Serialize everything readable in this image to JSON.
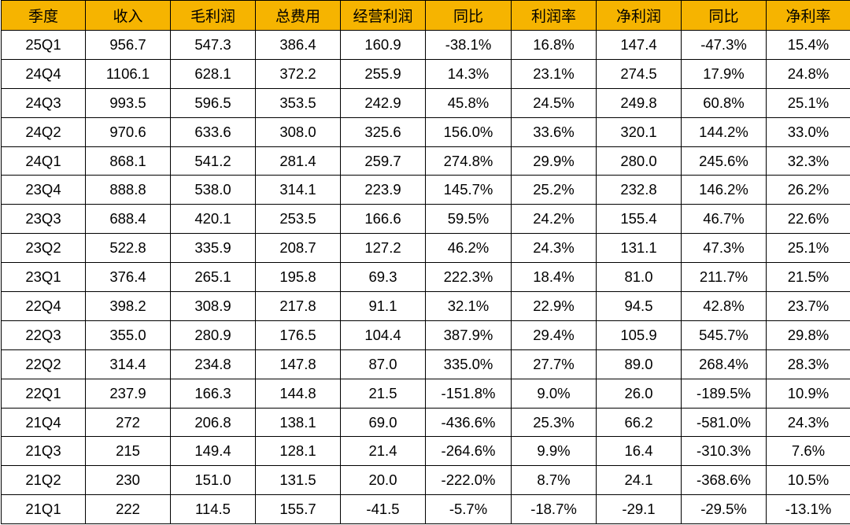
{
  "table": {
    "headers": [
      "季度",
      "收入",
      "毛利润",
      "总费用",
      "经营利润",
      "同比",
      "利润率",
      "净利润",
      "同比",
      "净利率"
    ],
    "rows": [
      [
        "25Q1",
        "956.7",
        "547.3",
        "386.4",
        "160.9",
        "-38.1%",
        "16.8%",
        "147.4",
        "-47.3%",
        "15.4%"
      ],
      [
        "24Q4",
        "1106.1",
        "628.1",
        "372.2",
        "255.9",
        "14.3%",
        "23.1%",
        "274.5",
        "17.9%",
        "24.8%"
      ],
      [
        "24Q3",
        "993.5",
        "596.5",
        "353.5",
        "242.9",
        "45.8%",
        "24.5%",
        "249.8",
        "60.8%",
        "25.1%"
      ],
      [
        "24Q2",
        "970.6",
        "633.6",
        "308.0",
        "325.6",
        "156.0%",
        "33.6%",
        "320.1",
        "144.2%",
        "33.0%"
      ],
      [
        "24Q1",
        "868.1",
        "541.2",
        "281.4",
        "259.7",
        "274.8%",
        "29.9%",
        "280.0",
        "245.6%",
        "32.3%"
      ],
      [
        "23Q4",
        "888.8",
        "538.0",
        "314.1",
        "223.9",
        "145.7%",
        "25.2%",
        "232.8",
        "146.2%",
        "26.2%"
      ],
      [
        "23Q3",
        "688.4",
        "420.1",
        "253.5",
        "166.6",
        "59.5%",
        "24.2%",
        "155.4",
        "46.7%",
        "22.6%"
      ],
      [
        "23Q2",
        "522.8",
        "335.9",
        "208.7",
        "127.2",
        "46.2%",
        "24.3%",
        "131.1",
        "47.3%",
        "25.1%"
      ],
      [
        "23Q1",
        "376.4",
        "265.1",
        "195.8",
        "69.3",
        "222.3%",
        "18.4%",
        "81.0",
        "211.7%",
        "21.5%"
      ],
      [
        "22Q4",
        "398.2",
        "308.9",
        "217.8",
        "91.1",
        "32.1%",
        "22.9%",
        "94.5",
        "42.8%",
        "23.7%"
      ],
      [
        "22Q3",
        "355.0",
        "280.9",
        "176.5",
        "104.4",
        "387.9%",
        "29.4%",
        "105.9",
        "545.7%",
        "29.8%"
      ],
      [
        "22Q2",
        "314.4",
        "234.8",
        "147.8",
        "87.0",
        "335.0%",
        "27.7%",
        "89.0",
        "268.4%",
        "28.3%"
      ],
      [
        "22Q1",
        "237.9",
        "166.3",
        "144.8",
        "21.5",
        "-151.8%",
        "9.0%",
        "26.0",
        "-189.5%",
        "10.9%"
      ],
      [
        "21Q4",
        "272",
        "206.8",
        "138.1",
        "69.0",
        "-436.6%",
        "25.3%",
        "66.2",
        "-581.0%",
        "24.3%"
      ],
      [
        "21Q3",
        "215",
        "149.4",
        "128.1",
        "21.4",
        "-264.6%",
        "9.9%",
        "16.4",
        "-310.3%",
        "7.6%"
      ],
      [
        "21Q2",
        "230",
        "151.0",
        "131.5",
        "20.0",
        "-222.0%",
        "8.7%",
        "24.1",
        "-368.6%",
        "10.5%"
      ],
      [
        "21Q1",
        "222",
        "114.5",
        "155.7",
        "-41.5",
        "-5.7%",
        "-18.7%",
        "-29.1",
        "-29.5%",
        "-13.1%"
      ]
    ]
  },
  "colors": {
    "header_bg": "#f6b400",
    "border": "#000000",
    "cell_bg": "#ffffff"
  }
}
